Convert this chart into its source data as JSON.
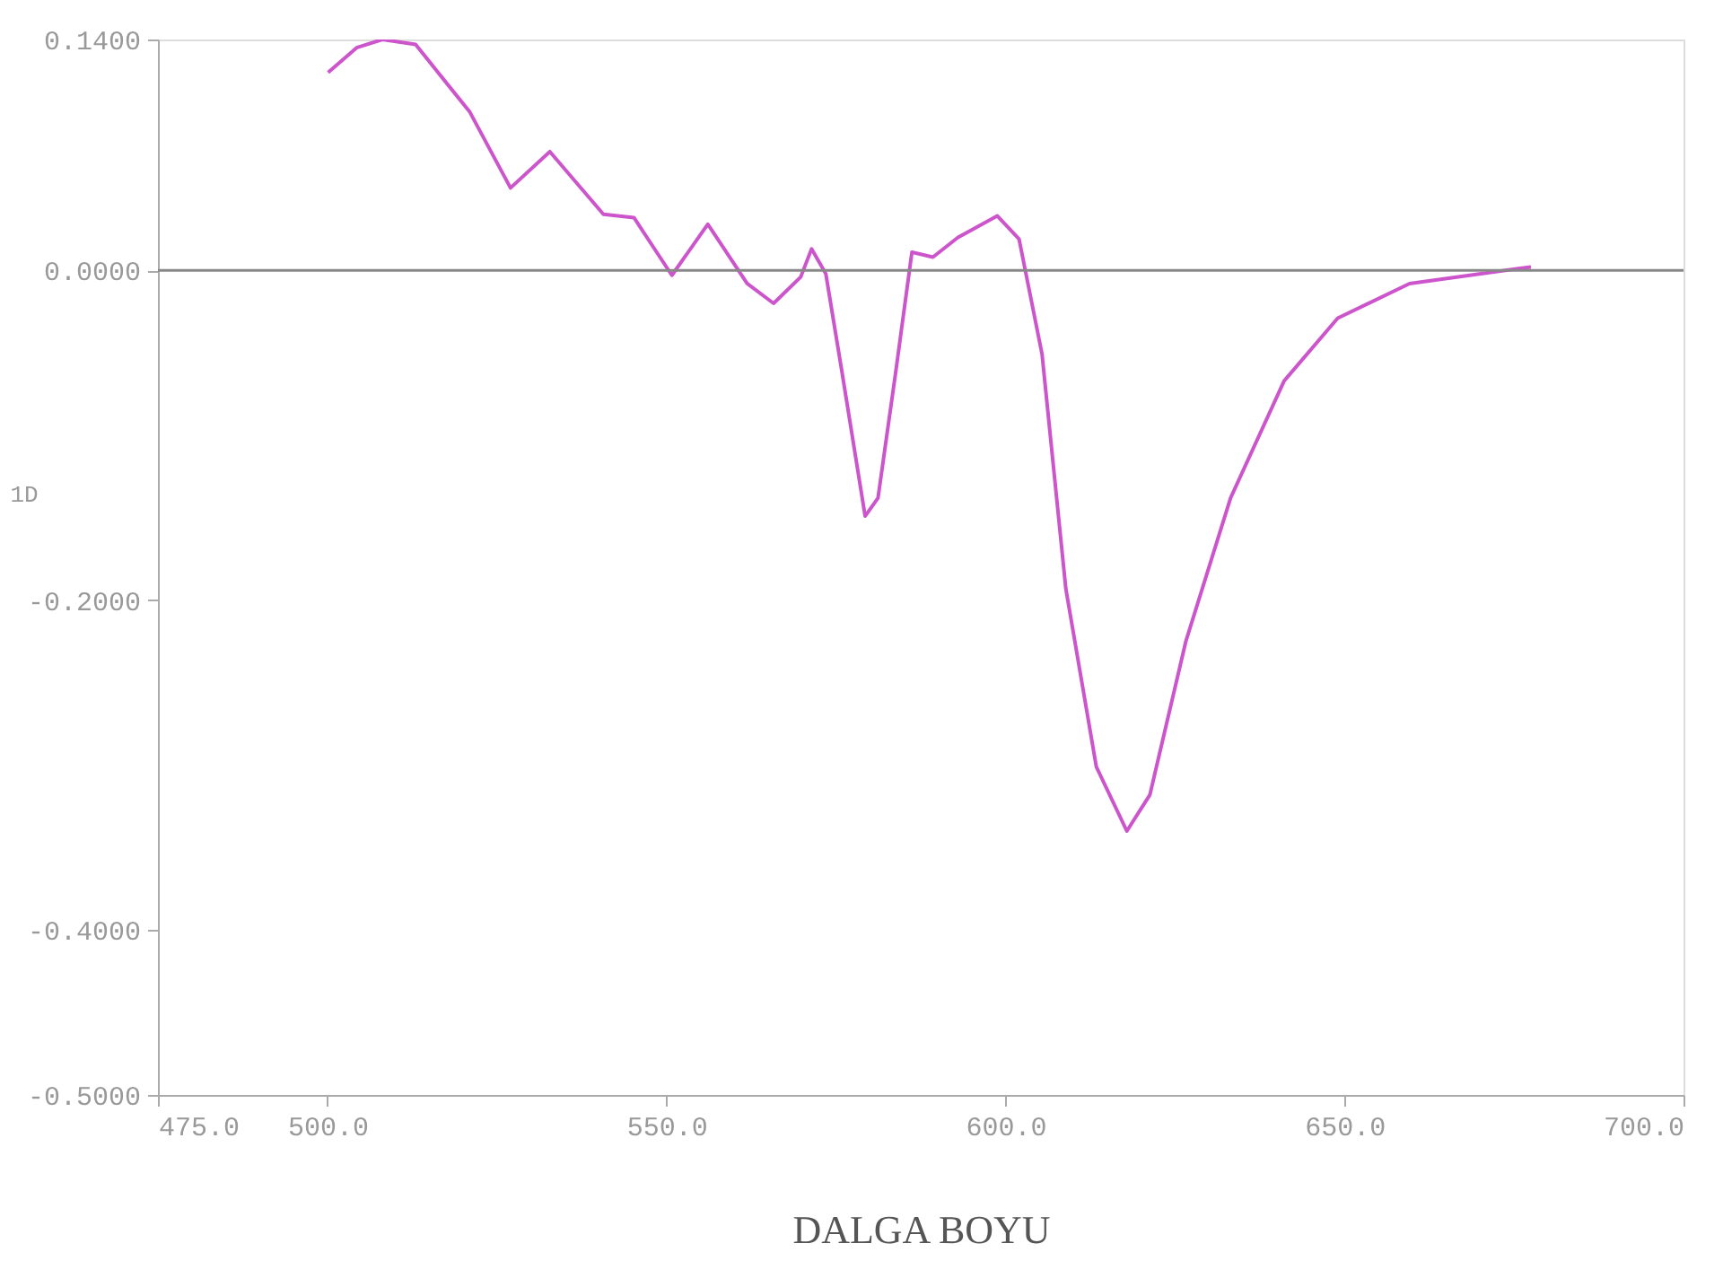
{
  "chart_data": {
    "type": "line",
    "xlabel": "DALGA BOYU",
    "ylabel": "1D",
    "x": [
      500.1,
      504.3,
      508.1,
      513.0,
      521.0,
      527.0,
      532.8,
      540.7,
      545.2,
      550.8,
      556.1,
      561.9,
      565.8,
      569.8,
      571.4,
      573.5,
      575.9,
      579.3,
      581.2,
      583.8,
      586.2,
      589.3,
      593.0,
      598.8,
      602.0,
      605.4,
      608.9,
      613.4,
      617.9,
      621.3,
      626.6,
      633.2,
      641.1,
      649.0,
      659.6,
      675.4,
      677.5
    ],
    "series": [
      {
        "color": "#cc55cc",
        "values": [
          0.12,
          0.135,
          0.14,
          0.137,
          0.096,
          0.05,
          0.072,
          0.034,
          0.032,
          -0.003,
          0.028,
          -0.008,
          -0.02,
          -0.004,
          0.013,
          -0.002,
          -0.062,
          -0.149,
          -0.138,
          -0.062,
          0.011,
          0.008,
          0.02,
          0.033,
          0.019,
          -0.051,
          -0.193,
          -0.301,
          -0.34,
          -0.318,
          -0.225,
          -0.138,
          -0.067,
          -0.029,
          -0.008,
          0.001,
          0.002
        ]
      }
    ],
    "xlim": [
      475,
      700
    ],
    "ylim": [
      -0.5,
      0.14
    ],
    "xticks": [
      {
        "value": 475,
        "label": "475.0"
      },
      {
        "value": 500,
        "label": "500.0"
      },
      {
        "value": 550,
        "label": "550.0"
      },
      {
        "value": 600,
        "label": "600.0"
      },
      {
        "value": 650,
        "label": "650.0"
      },
      {
        "value": 700,
        "label": "700.0"
      }
    ],
    "yticks": [
      {
        "value": 0.14,
        "label": "0.1400"
      },
      {
        "value": 0,
        "label": "0.0000"
      },
      {
        "value": -0.2,
        "label": "-0.2000"
      },
      {
        "value": -0.4,
        "label": "-0.4000"
      },
      {
        "value": -0.5,
        "label": "-0.5000"
      }
    ],
    "ref_lines": [
      {
        "axis": "y",
        "value": 0,
        "color": "#888888"
      }
    ],
    "grid": false,
    "marker": "none",
    "line_style": "solid"
  }
}
